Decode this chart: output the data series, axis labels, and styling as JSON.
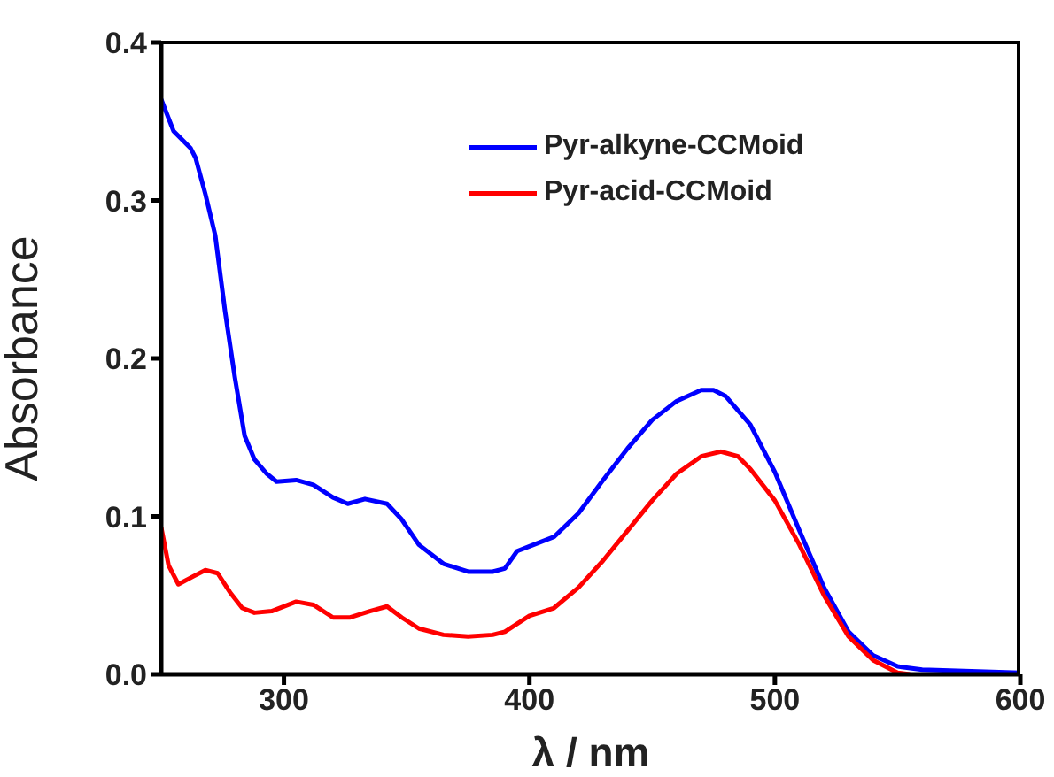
{
  "chart_data": {
    "type": "line",
    "xlabel": "λ / nm",
    "ylabel": "Absorbance",
    "xlim": [
      250,
      600
    ],
    "xticks": [
      300,
      400,
      500,
      600
    ],
    "ylim": [
      0,
      0.4
    ],
    "yticks": [
      {
        "value": 0,
        "label": "0.0"
      },
      {
        "value": 0.1,
        "label": "0.1"
      },
      {
        "value": 0.2,
        "label": "0.2"
      },
      {
        "value": 0.3,
        "label": "0.3"
      },
      {
        "value": 0.4,
        "label": "0.4"
      }
    ],
    "grid": false,
    "legend": "top",
    "marker": "none",
    "line_style": "solid",
    "series": [
      {
        "name": "Pyr-alkyne-CCMoid",
        "color": "#0000ff",
        "x": [
          250,
          255,
          262,
          264,
          268,
          272,
          276,
          280,
          284,
          288,
          293,
          297,
          305,
          312,
          320,
          326,
          333,
          342,
          348,
          355,
          365,
          375,
          385,
          390,
          395,
          400,
          410,
          420,
          430,
          440,
          450,
          460,
          470,
          475,
          480,
          490,
          500,
          510,
          520,
          530,
          540,
          550,
          560,
          580,
          600
        ],
        "values": [
          0.364,
          0.344,
          0.333,
          0.327,
          0.304,
          0.278,
          0.23,
          0.188,
          0.151,
          0.136,
          0.127,
          0.122,
          0.123,
          0.12,
          0.112,
          0.108,
          0.111,
          0.108,
          0.098,
          0.082,
          0.07,
          0.065,
          0.065,
          0.067,
          0.078,
          0.081,
          0.087,
          0.102,
          0.123,
          0.143,
          0.161,
          0.173,
          0.18,
          0.18,
          0.176,
          0.158,
          0.128,
          0.091,
          0.055,
          0.027,
          0.012,
          0.005,
          0.003,
          0.002,
          0.001
        ]
      },
      {
        "name": "Pyr-acid-CCMoid",
        "color": "#ff0000",
        "x": [
          250,
          253,
          257,
          263,
          268,
          273,
          278,
          283,
          288,
          295,
          305,
          312,
          320,
          327,
          335,
          342,
          348,
          355,
          365,
          375,
          385,
          390,
          400,
          410,
          420,
          430,
          440,
          450,
          460,
          470,
          478,
          485,
          490,
          500,
          510,
          520,
          530,
          540,
          550,
          555
        ],
        "values": [
          0.093,
          0.069,
          0.057,
          0.062,
          0.066,
          0.064,
          0.052,
          0.042,
          0.039,
          0.04,
          0.046,
          0.044,
          0.036,
          0.036,
          0.04,
          0.043,
          0.036,
          0.029,
          0.025,
          0.024,
          0.025,
          0.027,
          0.037,
          0.042,
          0.055,
          0.072,
          0.091,
          0.11,
          0.127,
          0.138,
          0.141,
          0.138,
          0.13,
          0.11,
          0.082,
          0.05,
          0.024,
          0.009,
          0.001,
          0
        ]
      }
    ]
  }
}
